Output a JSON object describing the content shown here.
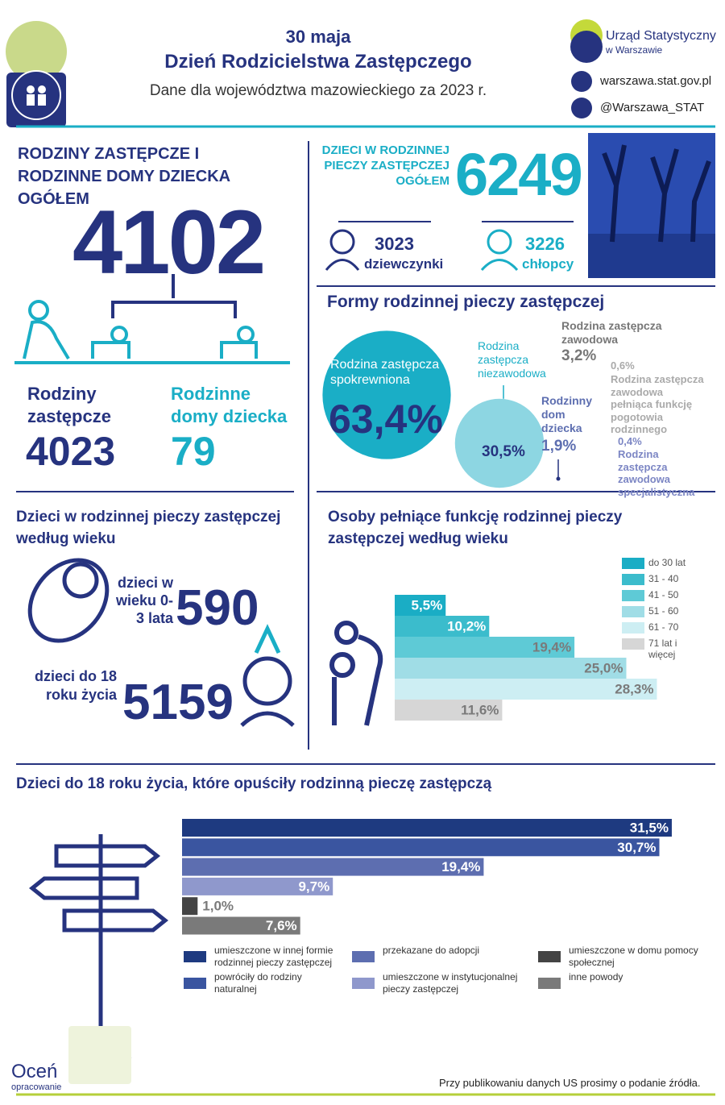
{
  "header": {
    "date": "30 maja",
    "title": "Dzień Rodzicielstwa Zastępczego",
    "subtitle": "Dane dla województwa mazowieckiego za 2023 r.",
    "org": "Urząd Statystyczny",
    "org_sub": "w Warszawie",
    "website": "warszawa.stat.gov.pl",
    "twitter": "@Warszawa_STAT"
  },
  "families": {
    "title": "RODZINY ZASTĘPCZE I RODZINNE DOMY DZIECKA OGÓŁEM",
    "total": 4102,
    "foster": {
      "label": "Rodziny zastępcze",
      "value": 4023
    },
    "homes": {
      "label": "Rodzinne domy dziecka",
      "value": 79
    }
  },
  "children": {
    "title": "DZIECI W RODZINNEJ PIECZY ZASTĘPCZEJ OGÓŁEM",
    "total": 6249,
    "girls": {
      "value": 3023,
      "label": "dziewczynki"
    },
    "boys": {
      "value": 3226,
      "label": "chłopcy"
    }
  },
  "forms": {
    "title": "Formy rodzinnej pieczy zastępczej",
    "items": [
      {
        "label": "Rodzina zastępcza spokrewniona",
        "value": 63.4,
        "value_label": "63,4%",
        "color": "#1aaec6"
      },
      {
        "label": "Rodzina zastępcza niezawodowa",
        "value": 30.5,
        "value_label": "30,5%",
        "color": "#8dd6e2"
      },
      {
        "label": "Rodzina zastępcza zawodowa",
        "value": 3.2,
        "value_label": "3,2%"
      },
      {
        "label": "Rodzinny dom dziecka",
        "value": 1.9,
        "value_label": "1,9%"
      },
      {
        "label": "Rodzina zastępcza zawodowa pełniąca funkcję pogotowia rodzinnego",
        "value": 0.6,
        "value_label": "0,6%"
      },
      {
        "label": "Rodzina zastępcza zawodowa specjalistyczna",
        "value": 0.4,
        "value_label": "0,4%"
      }
    ]
  },
  "age_children": {
    "title": "Dzieci w rodzinnej pieczy zastępczej według wieku",
    "items": [
      {
        "label": "dzieci w wieku 0-3 lata",
        "value": 590
      },
      {
        "label": "dzieci do 18 roku życia",
        "value": 5159
      }
    ]
  },
  "chart_data": [
    {
      "type": "bar",
      "orientation": "horizontal",
      "title": "Osoby pełniące funkcję rodzinnej pieczy zastępczej według wieku",
      "categories": [
        "do 30 lat",
        "31 - 40",
        "41 - 50",
        "51 - 60",
        "61 - 70",
        "71 lat i więcej"
      ],
      "values": [
        5.5,
        10.2,
        19.4,
        25.0,
        28.3,
        11.6
      ],
      "value_labels": [
        "5,5%",
        "10,2%",
        "19,4%",
        "25,0%",
        "28,3%",
        "11,6%"
      ],
      "colors": [
        "#1aadc5",
        "#3bbccc",
        "#5ecad6",
        "#a0dde6",
        "#cdeef3",
        "#d6d6d6"
      ]
    },
    {
      "type": "bar",
      "orientation": "horizontal",
      "title": "Dzieci do 18 roku życia, które opuściły rodzinną pieczę zastępczą",
      "categories": [
        "umieszczone w innej formie rodzinnej pieczy zastępczej",
        "powróciły do rodziny naturalnej",
        "przekazane do adopcji",
        "umieszczone w instytucjonalnej pieczy zastępczej",
        "umieszczone w domu pomocy społecznej",
        "inne powody"
      ],
      "values": [
        31.5,
        30.7,
        19.4,
        9.7,
        1.0,
        7.6
      ],
      "value_labels": [
        "31,5%",
        "30,7%",
        "19,4%",
        "9,7%",
        "1,0%",
        "7,6%"
      ],
      "colors": [
        "#1e3a80",
        "#3a55a0",
        "#5d6eb0",
        "#8f98cc",
        "#444444",
        "#7a7a7a"
      ]
    }
  ],
  "footer": {
    "rate": "Oceń",
    "rate_sub": "opracowanie",
    "note": "Przy publikowaniu danych US prosimy o podanie źródła."
  }
}
